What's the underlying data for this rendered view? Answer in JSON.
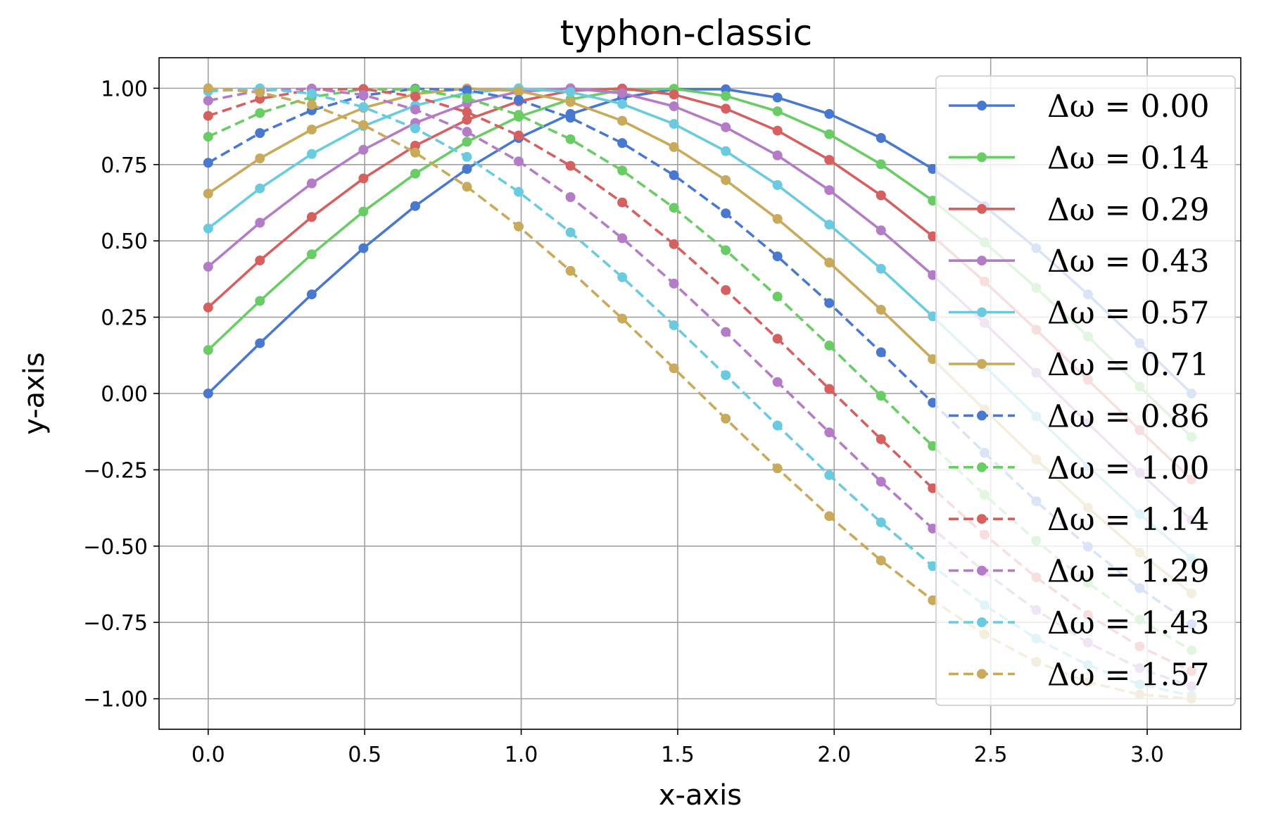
{
  "chart_data": {
    "type": "line",
    "title": "typhon-classic",
    "xlabel": "x-axis",
    "ylabel": "y-axis",
    "xlim": [
      -0.157,
      3.299
    ],
    "ylim": [
      -1.1,
      1.1
    ],
    "xticks": [
      0.0,
      0.5,
      1.0,
      1.5,
      2.0,
      2.5,
      3.0
    ],
    "xtick_labels": [
      "0.0",
      "0.5",
      "1.0",
      "1.5",
      "2.0",
      "2.5",
      "3.0"
    ],
    "yticks": [
      1.0,
      0.75,
      0.5,
      0.25,
      0.0,
      -0.25,
      -0.5,
      -0.75,
      -1.0
    ],
    "ytick_labels": [
      "1.00",
      "0.75",
      "0.50",
      "0.25",
      "0.00",
      "−0.25",
      "−0.50",
      "−0.75",
      "−1.00"
    ],
    "grid": true,
    "legend_position": "right",
    "x": [
      0.0,
      0.1653,
      0.3307,
      0.496,
      0.6614,
      0.8267,
      0.9921,
      1.1574,
      1.3228,
      1.4881,
      1.6535,
      1.8188,
      1.9842,
      2.1495,
      2.3149,
      2.4802,
      2.6456,
      2.8109,
      2.9762,
      3.1416
    ],
    "series": [
      {
        "name": "Δω = 0.00",
        "phase": 0.0,
        "color": "#4878d0",
        "dash": "solid"
      },
      {
        "name": "Δω = 0.14",
        "phase": 0.1428,
        "color": "#6acc64",
        "dash": "solid"
      },
      {
        "name": "Δω = 0.29",
        "phase": 0.2856,
        "color": "#d65f5f",
        "dash": "solid"
      },
      {
        "name": "Δω = 0.43",
        "phase": 0.4284,
        "color": "#b47cc7",
        "dash": "solid"
      },
      {
        "name": "Δω = 0.57",
        "phase": 0.5712,
        "color": "#6acbe0",
        "dash": "solid"
      },
      {
        "name": "Δω = 0.71",
        "phase": 0.714,
        "color": "#c9a95a",
        "dash": "solid"
      },
      {
        "name": "Δω = 0.86",
        "phase": 0.8568,
        "color": "#4878d0",
        "dash": "dashed"
      },
      {
        "name": "Δω = 1.00",
        "phase": 0.9996,
        "color": "#6acc64",
        "dash": "dashed"
      },
      {
        "name": "Δω = 1.14",
        "phase": 1.1424,
        "color": "#d65f5f",
        "dash": "dashed"
      },
      {
        "name": "Δω = 1.29",
        "phase": 1.2852,
        "color": "#b47cc7",
        "dash": "dashed"
      },
      {
        "name": "Δω = 1.43",
        "phase": 1.428,
        "color": "#6acbe0",
        "dash": "dashed"
      },
      {
        "name": "Δω = 1.57",
        "phase": 1.5708,
        "color": "#c9a95a",
        "dash": "dashed"
      }
    ],
    "function": "y = sin(x + phase)"
  }
}
